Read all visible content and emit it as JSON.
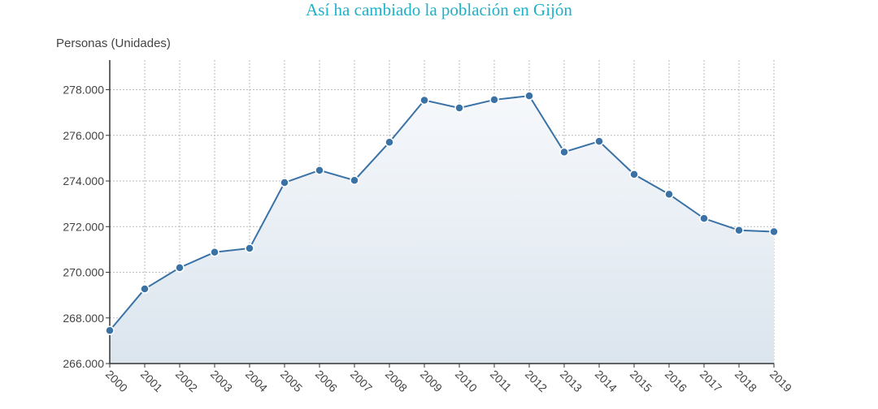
{
  "chart_data": {
    "type": "line",
    "title": "Así ha cambiado la población en Gijón",
    "ylabel": "Personas (Unidades)",
    "xlabel": "",
    "x": [
      "2000",
      "2001",
      "2002",
      "2003",
      "2004",
      "2005",
      "2006",
      "2007",
      "2008",
      "2009",
      "2010",
      "2011",
      "2012",
      "2013",
      "2014",
      "2015",
      "2016",
      "2017",
      "2018",
      "2019"
    ],
    "series": [
      {
        "values": [
          267450,
          269270,
          270200,
          270880,
          271050,
          273930,
          274470,
          274030,
          275700,
          277540,
          277200,
          277560,
          277730,
          275270,
          275740,
          274290,
          273420,
          272360,
          271840,
          271780
        ]
      }
    ],
    "ylim": [
      266000,
      279300
    ],
    "yticks": [
      266000,
      268000,
      270000,
      272000,
      274000,
      276000,
      278000
    ],
    "ytick_labels": [
      "266.000",
      "268.000",
      "270.000",
      "272.000",
      "274.000",
      "276.000",
      "278.000"
    ],
    "grid": true,
    "colors": {
      "title": "#1fb0c8",
      "line": "#3a72a6",
      "marker": "#3a72a6",
      "grid": "#bbbbbb",
      "area_top": "#f6f8fb",
      "area_bottom": "#dbe5ee"
    }
  }
}
